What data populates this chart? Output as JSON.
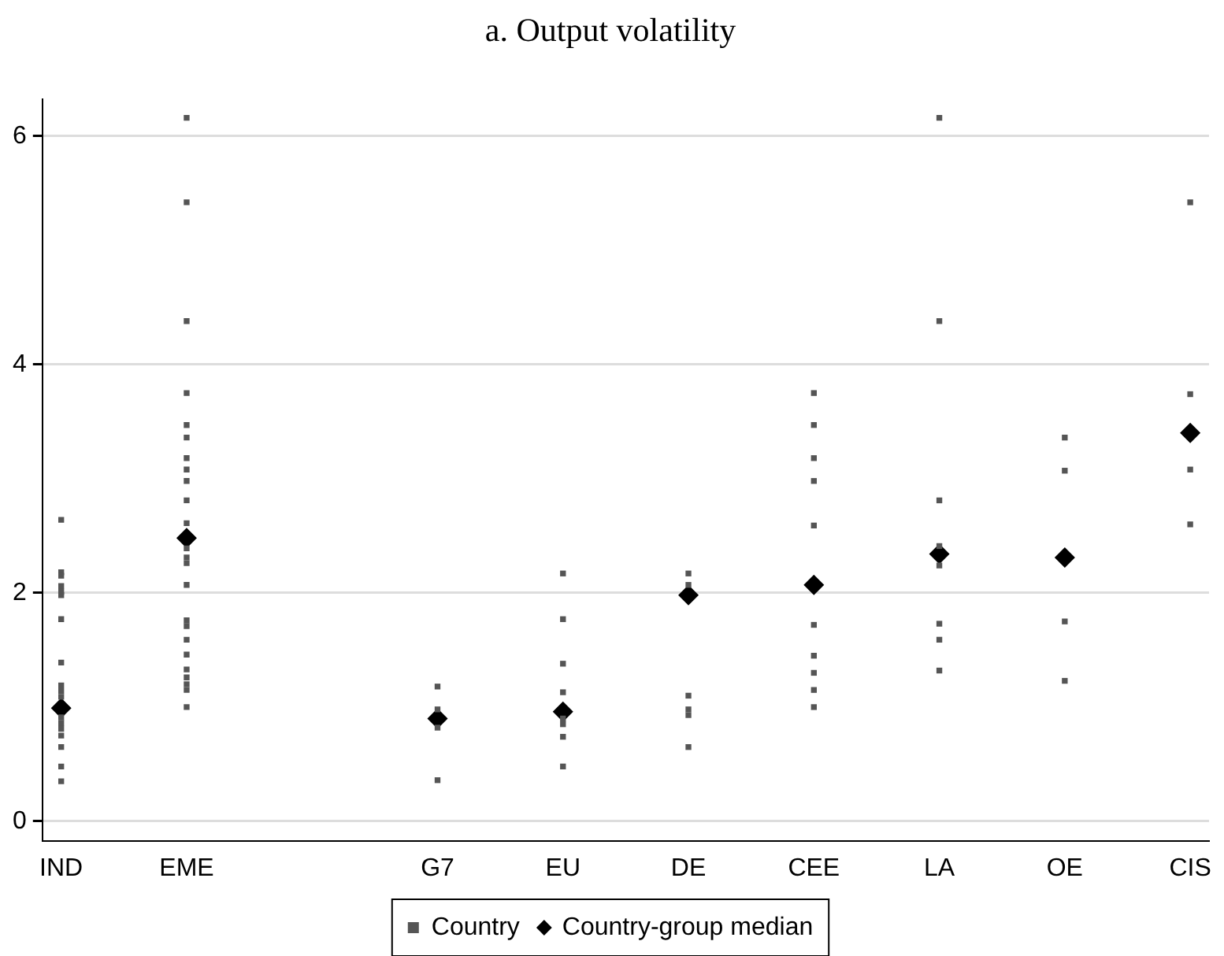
{
  "chart_data": {
    "type": "scatter",
    "title": "a. Output volatility",
    "categories": [
      "IND",
      "EME",
      null,
      "G7",
      "EU",
      "DE",
      "CEE",
      "LA",
      "OE",
      "CIS"
    ],
    "series": [
      {
        "name": "Country",
        "color": "#555555",
        "marker": "square",
        "x": [
          "IND",
          "IND",
          "IND",
          "IND",
          "IND",
          "IND",
          "IND",
          "IND",
          "IND",
          "IND",
          "IND",
          "IND",
          "IND",
          "IND",
          "IND",
          "IND",
          "IND",
          "IND",
          "EME",
          "EME",
          "EME",
          "EME",
          "EME",
          "EME",
          "EME",
          "EME",
          "EME",
          "EME",
          "EME",
          "EME",
          "EME",
          "EME",
          "EME",
          "EME",
          "EME",
          "EME",
          "EME",
          "EME",
          "EME",
          "EME",
          "EME",
          "EME",
          "G7",
          "G7",
          "G7",
          "G7",
          "EU",
          "EU",
          "EU",
          "EU",
          "EU",
          "EU",
          "EU",
          "EU",
          "DE",
          "DE",
          "DE",
          "DE",
          "DE",
          "DE",
          "CEE",
          "CEE",
          "CEE",
          "CEE",
          "CEE",
          "CEE",
          "CEE",
          "CEE",
          "CEE",
          "CEE",
          "LA",
          "LA",
          "LA",
          "LA",
          "LA",
          "LA",
          "LA",
          "LA",
          "OE",
          "OE",
          "OE",
          "OE",
          "CIS",
          "CIS",
          "CIS",
          "CIS"
        ],
        "values": [
          2.64,
          2.18,
          2.15,
          2.06,
          2.01,
          1.98,
          1.77,
          1.39,
          1.19,
          1.14,
          1.09,
          0.91,
          0.86,
          0.81,
          0.75,
          0.65,
          0.48,
          0.35,
          6.16,
          5.42,
          4.38,
          3.75,
          3.47,
          3.36,
          3.18,
          3.08,
          2.98,
          2.81,
          2.61,
          2.39,
          2.31,
          2.26,
          2.07,
          1.76,
          1.71,
          1.59,
          1.46,
          1.33,
          1.26,
          1.2,
          1.15,
          1.0,
          1.18,
          0.98,
          0.82,
          0.36,
          2.17,
          1.77,
          1.38,
          1.13,
          0.9,
          0.85,
          0.74,
          0.48,
          2.17,
          2.07,
          1.1,
          0.98,
          0.93,
          0.65,
          3.75,
          3.47,
          3.18,
          2.98,
          2.59,
          1.72,
          1.45,
          1.3,
          1.15,
          1.0,
          6.16,
          4.38,
          2.81,
          2.41,
          2.24,
          1.73,
          1.59,
          1.32,
          3.36,
          3.07,
          1.75,
          1.23,
          5.42,
          3.74,
          3.08,
          2.6
        ]
      },
      {
        "name": "Country-group median",
        "color": "#000000",
        "marker": "diamond",
        "x": [
          "IND",
          "EME",
          "G7",
          "EU",
          "DE",
          "CEE",
          "LA",
          "OE",
          "CIS"
        ],
        "values": [
          0.99,
          2.48,
          0.9,
          0.96,
          1.98,
          2.07,
          2.34,
          2.31,
          3.4
        ]
      }
    ],
    "ylim": [
      -0.17,
      6.32
    ],
    "yticks": [
      0,
      2,
      4,
      6
    ],
    "grid": "y",
    "legend": "bottom"
  }
}
